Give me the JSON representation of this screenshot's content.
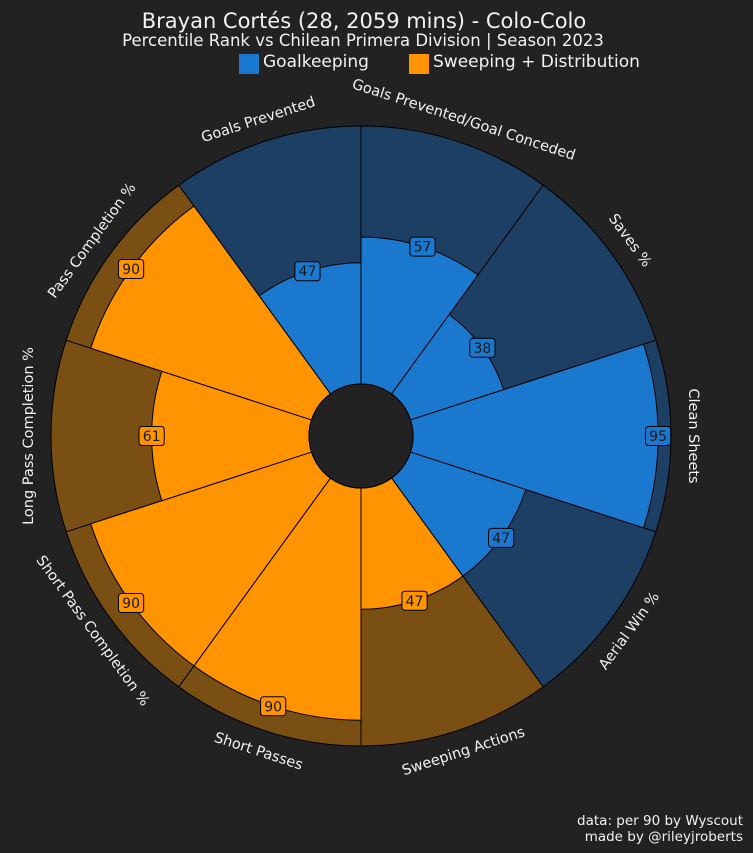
{
  "chart_data": {
    "type": "radar",
    "title": "Brayan Cortés (28, 2059 mins) - Colo-Colo",
    "subtitle": "Percentile Rank vs Chilean Primera Division | Season 2023",
    "legend": [
      {
        "name": "Goalkeeping",
        "color": "#1a78cf"
      },
      {
        "name": "Sweeping + Distribution",
        "color": "#ff9300"
      }
    ],
    "categories": [
      {
        "label": "Goals Prevented",
        "value": 47,
        "group": "Goalkeeping"
      },
      {
        "label": "Goals Prevented/Goal Conceded",
        "value": 57,
        "group": "Goalkeeping"
      },
      {
        "label": "Saves %",
        "value": 38,
        "group": "Goalkeeping"
      },
      {
        "label": "Clean Sheets",
        "value": 95,
        "group": "Goalkeeping"
      },
      {
        "label": "Aerial Win %",
        "value": 47,
        "group": "Goalkeeping"
      },
      {
        "label": "Sweeping Actions",
        "value": 47,
        "group": "Sweeping + Distribution"
      },
      {
        "label": "Short Passes",
        "value": 90,
        "group": "Sweeping + Distribution"
      },
      {
        "label": "Short Pass Completion %",
        "value": 90,
        "group": "Sweeping + Distribution"
      },
      {
        "label": "Long Pass Completion %",
        "value": 61,
        "group": "Sweeping + Distribution"
      },
      {
        "label": "Pass Completion %",
        "value": 90,
        "group": "Sweeping + Distribution"
      }
    ],
    "range": [
      0,
      100
    ],
    "background_colors": {
      "Goalkeeping": "#1e3f64",
      "Sweeping + Distribution": "#7a4f14"
    },
    "page_background": "#222222"
  },
  "footer": {
    "credit_line1": "data: per 90 by Wyscout",
    "credit_line2": "made by @rileyjroberts"
  }
}
